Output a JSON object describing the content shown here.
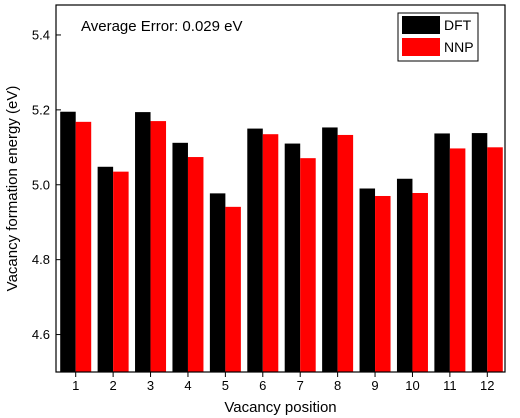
{
  "chart_data": {
    "type": "bar",
    "title": "",
    "annotation": "Average Error: 0.029 eV",
    "xlabel": "Vacancy position",
    "ylabel": "Vacancy formation energy (eV)",
    "categories": [
      "1",
      "2",
      "3",
      "4",
      "5",
      "6",
      "7",
      "8",
      "9",
      "10",
      "11",
      "12"
    ],
    "series": [
      {
        "name": "DFT",
        "color": "#000000",
        "values": [
          5.195,
          5.048,
          5.194,
          5.112,
          4.977,
          5.15,
          5.11,
          5.153,
          4.99,
          5.016,
          5.137,
          5.138
        ]
      },
      {
        "name": "NNP",
        "color": "#ff0000",
        "values": [
          5.168,
          5.035,
          5.17,
          5.074,
          4.941,
          5.135,
          5.071,
          5.133,
          4.97,
          4.978,
          5.097,
          5.1
        ]
      }
    ],
    "ylim": [
      4.5,
      5.48
    ],
    "yticks": [
      "4.6",
      "4.8",
      "5.0",
      "5.2",
      "5.4"
    ],
    "grid": false,
    "legend_position": "top-right"
  }
}
